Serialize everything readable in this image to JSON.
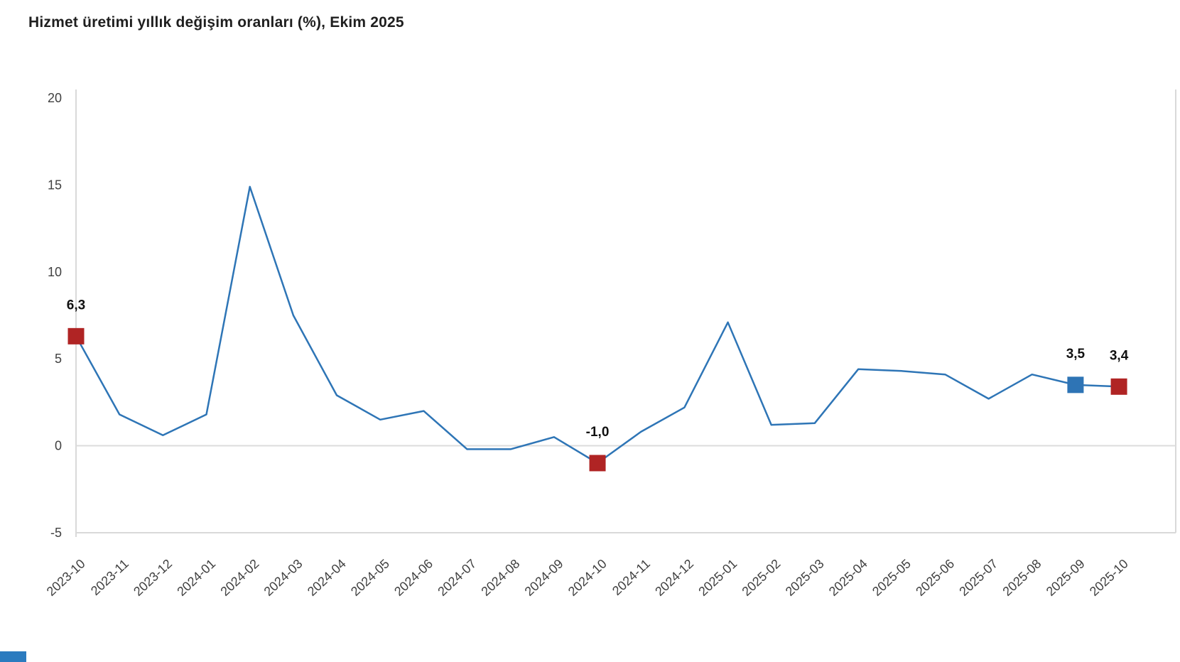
{
  "header": {
    "title": "Hizmet üretimi yıllık değişim oranları (%), Ekim 2025"
  },
  "chart_data": {
    "type": "line",
    "title": "Hizmet üretimi yıllık değişim oranları (%), Ekim 2025",
    "xlabel": "",
    "ylabel": "",
    "categories": [
      "2023-10",
      "2023-11",
      "2023-12",
      "2024-01",
      "2024-02",
      "2024-03",
      "2024-04",
      "2024-05",
      "2024-06",
      "2024-07",
      "2024-08",
      "2024-09",
      "2024-10",
      "2024-11",
      "2024-12",
      "2025-01",
      "2025-02",
      "2025-03",
      "2025-04",
      "2025-05",
      "2025-06",
      "2025-07",
      "2025-08",
      "2025-09",
      "2025-10"
    ],
    "values": [
      6.3,
      1.8,
      0.6,
      1.8,
      14.9,
      7.5,
      2.9,
      1.5,
      2.0,
      -0.2,
      -0.2,
      0.5,
      -1.0,
      0.8,
      2.2,
      7.1,
      1.2,
      1.3,
      4.4,
      4.3,
      4.1,
      2.7,
      4.1,
      3.5,
      3.4
    ],
    "y_ticks": [
      20,
      15,
      10,
      5,
      0,
      -5
    ],
    "ylim": [
      -5,
      20
    ],
    "grid": "horizontal zero line only",
    "legend": "none",
    "annotations": [
      {
        "index": 0,
        "label": "6,3",
        "marker_color": "#B02424"
      },
      {
        "index": 12,
        "label": "-1,0",
        "marker_color": "#B02424"
      },
      {
        "index": 23,
        "label": "3,5",
        "marker_color": "#2E74B5"
      },
      {
        "index": 24,
        "label": "3,4",
        "marker_color": "#B02424"
      }
    ],
    "colors": {
      "line": "#2E75B6",
      "axis": "#D9D9D9",
      "zero_line": "#DCDCDC",
      "tick_text": "#404040",
      "annotation_text": "#111111",
      "footer_strip": "#2B7BBF"
    }
  }
}
